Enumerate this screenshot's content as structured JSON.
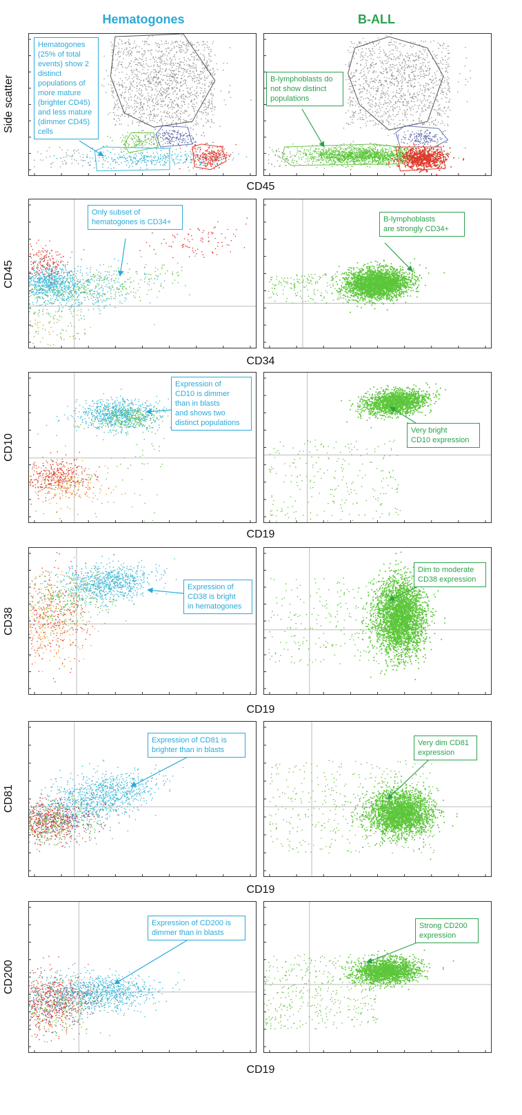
{
  "columns": {
    "left": "Hematogones",
    "right": "B-ALL"
  },
  "colors": {
    "hema": "#29a9d8",
    "ball": "#2aa14d"
  },
  "rows": [
    {
      "ylabel": "Side scatter",
      "xlabel": "CD45",
      "hema_note": [
        "Hematogones",
        "(25% of total",
        "events) show 2",
        "distinct",
        "populations of",
        "more mature",
        "(brighter CD45)",
        "and less mature",
        "(dimmer CD45)",
        "cells"
      ],
      "ball_note": [
        "B-lymphoblasts do",
        "not show distinct",
        "populations"
      ]
    },
    {
      "ylabel": "CD45",
      "xlabel": "CD34",
      "hema_note": [
        "Only subset of",
        "hematogones is CD34+"
      ],
      "ball_note": [
        "B-lymphoblasts",
        "are strongly CD34+"
      ]
    },
    {
      "ylabel": "CD10",
      "xlabel": "CD19",
      "hema_note": [
        "Expression of",
        "CD10 is dimmer",
        "than in blasts",
        "and shows two",
        "distinct populations"
      ],
      "ball_note": [
        "Very bright",
        "CD10 expression"
      ]
    },
    {
      "ylabel": "CD38",
      "xlabel": "CD19",
      "hema_note": [
        "Expression of",
        "CD38 is bright",
        "in hematogones"
      ],
      "ball_note": [
        "Dim to moderate",
        "CD38 expression"
      ]
    },
    {
      "ylabel": "CD81",
      "xlabel": "CD19",
      "hema_note": [
        "Expression of CD81 is",
        "brighter than in blasts"
      ],
      "ball_note": [
        "Very dim CD81",
        "expression"
      ]
    },
    {
      "ylabel": "CD200",
      "xlabel": "CD19",
      "hema_note": [
        "Expression of CD200 is",
        "dimmer than in blasts"
      ],
      "ball_note": [
        "Strong CD200",
        "expression"
      ]
    }
  ],
  "chart_data": {
    "type": "scatter",
    "population_colors": {
      "hematogones": "#3fb8d6",
      "immature_hematogones": "#6cc24a",
      "lymphoblasts": "#5cc63a",
      "granulocytes": "#999999",
      "monocytes": "#6670b0",
      "lymphocytes": "#e03a2e",
      "other": "#e9a33a"
    }
  }
}
